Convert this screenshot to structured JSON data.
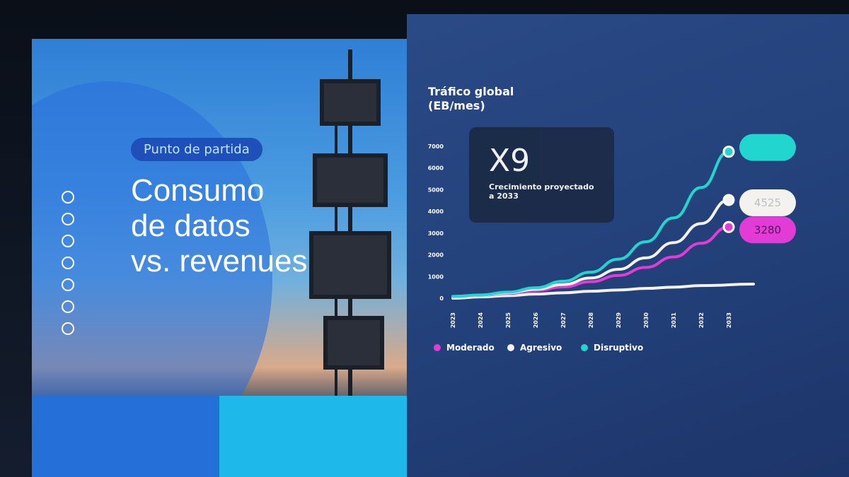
{
  "slide_left": {
    "pill": "Punto de partida",
    "title_lines": [
      "Consumo",
      "de datos",
      "vs. revenues"
    ]
  },
  "chart_data": {
    "type": "line",
    "title": "Tráfico global (EB/mes)",
    "title_lines": [
      "Tráfico global",
      "(EB/mes)"
    ],
    "x": [
      "2023",
      "2024",
      "2025",
      "2026",
      "2027",
      "2028",
      "2029",
      "2030",
      "2031",
      "2032",
      "2033"
    ],
    "ylim": [
      0,
      7000
    ],
    "yticks": [
      "0",
      "1000",
      "2000",
      "3000",
      "4000",
      "5000",
      "6000",
      "7000"
    ],
    "grid": false,
    "legend_position": "bottom-left",
    "series": [
      {
        "name": "Moderado",
        "color": "#e23bd6",
        "values": [
          80,
          130,
          220,
          350,
          520,
          760,
          1050,
          1420,
          1900,
          2530,
          3280
        ],
        "end_label": "3280"
      },
      {
        "name": "Agresivo",
        "color": "#f4f2ee",
        "values": [
          80,
          140,
          250,
          410,
          630,
          930,
          1330,
          1860,
          2560,
          3440,
          4525
        ],
        "end_label": "4525"
      },
      {
        "name": "Disruptivo",
        "color": "#22d6d0",
        "values": [
          80,
          150,
          280,
          480,
          780,
          1200,
          1800,
          2600,
          3700,
          5100,
          6750
        ],
        "end_label": ""
      },
      {
        "color": "#f4f2ee",
        "values": [
          0,
          60,
          120,
          190,
          250,
          320,
          380,
          450,
          510,
          580,
          650
        ]
      }
    ],
    "callout": {
      "value": "X9",
      "text": "Crecimiento proyectado a 2033"
    }
  }
}
